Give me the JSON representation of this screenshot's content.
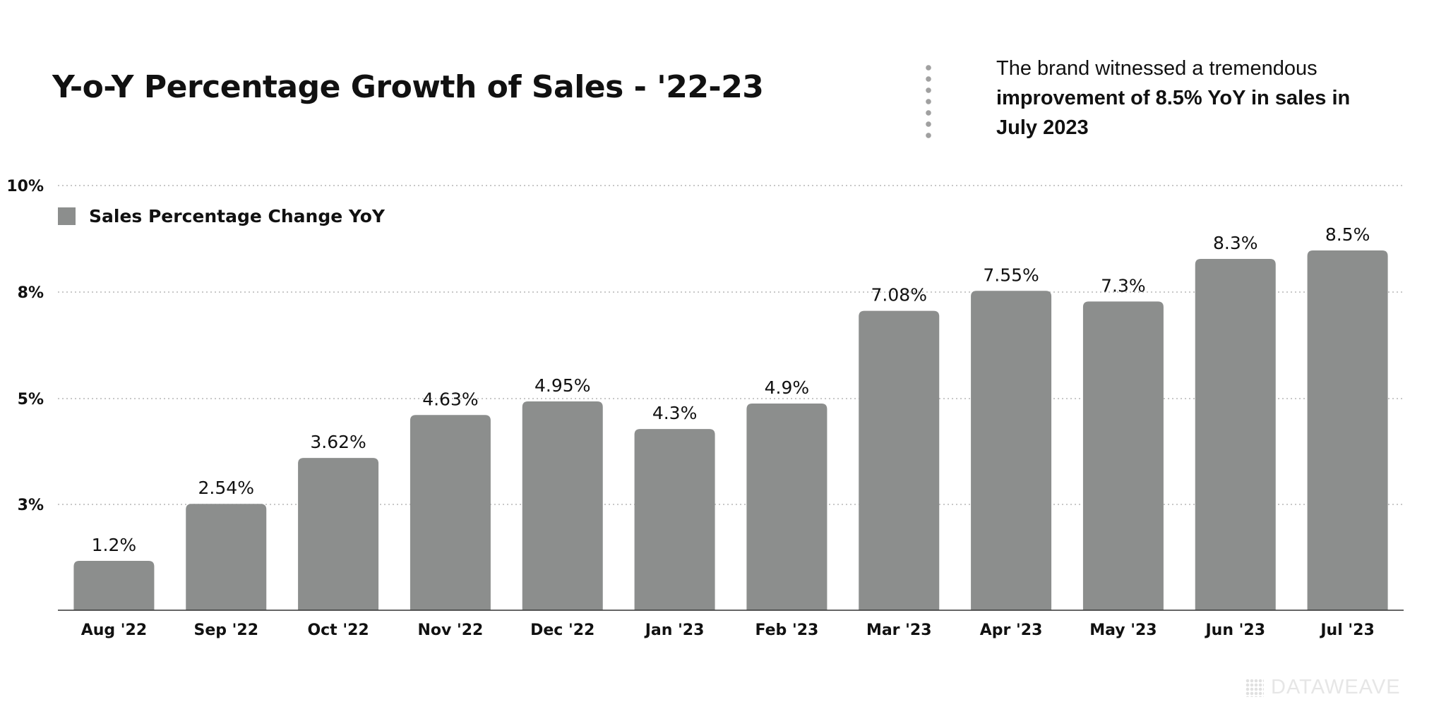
{
  "title": "Y-o-Y Percentage Growth of Sales - '22-23",
  "insight": {
    "normal": "The brand witnessed a tremendous",
    "bold": "improvement of 8.5% YoY in sales in July 2023"
  },
  "legend": {
    "label": "Sales Percentage Change YoY",
    "color": "#8c8e8d"
  },
  "watermark": "DATAWEAVE",
  "chart_data": {
    "type": "bar",
    "categories": [
      "Aug '22",
      "Sep '22",
      "Oct '22",
      "Nov '22",
      "Dec '22",
      "Jan '23",
      "Feb '23",
      "Mar '23",
      "Apr '23",
      "May '23",
      "Jun '23",
      "Jul '23"
    ],
    "series": [
      {
        "name": "Sales Percentage Change YoY",
        "values": [
          1.2,
          2.54,
          3.62,
          4.63,
          4.95,
          4.3,
          4.9,
          7.08,
          7.55,
          7.3,
          8.3,
          8.5
        ],
        "labels": [
          "1.2%",
          "2.54%",
          "3.62%",
          "4.63%",
          "4.95%",
          "4.3%",
          "4.9%",
          "7.08%",
          "7.55%",
          "7.3%",
          "8.3%",
          "8.5%"
        ],
        "color": "#8c8e8d"
      }
    ],
    "yticks": [
      "3%",
      "5%",
      "8%",
      "10%"
    ],
    "grid": true,
    "legend_position": "top-left"
  }
}
